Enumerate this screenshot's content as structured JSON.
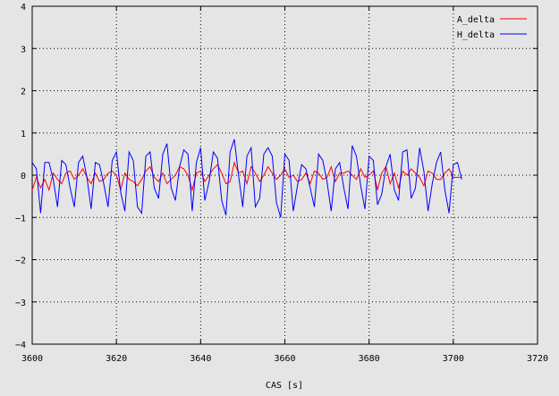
{
  "chart_data": {
    "type": "line",
    "title": "",
    "xlabel": "CAS [s]",
    "ylabel": "",
    "xlim": [
      3600,
      3720
    ],
    "ylim": [
      -4,
      4
    ],
    "grid": true,
    "legend_position": "top-right",
    "x_ticks": [
      "3600",
      "3620",
      "3640",
      "3660",
      "3680",
      "3700",
      "3720"
    ],
    "y_ticks": [
      "4",
      "3",
      "2",
      "1",
      "0",
      "−1",
      "−2",
      "−3",
      "−4"
    ],
    "series": [
      {
        "name": "A_delta",
        "color": "#ff0000",
        "x": [
          3600,
          3601,
          3602,
          3603,
          3604,
          3605,
          3606,
          3607,
          3608,
          3609,
          3610,
          3611,
          3612,
          3613,
          3614,
          3615,
          3616,
          3617,
          3618,
          3619,
          3620,
          3621,
          3622,
          3623,
          3624,
          3625,
          3626,
          3627,
          3628,
          3629,
          3630,
          3631,
          3632,
          3633,
          3634,
          3635,
          3636,
          3637,
          3638,
          3639,
          3640,
          3641,
          3642,
          3643,
          3644,
          3645,
          3646,
          3647,
          3648,
          3649,
          3650,
          3651,
          3652,
          3653,
          3654,
          3655,
          3656,
          3657,
          3658,
          3659,
          3660,
          3661,
          3662,
          3663,
          3664,
          3665,
          3666,
          3667,
          3668,
          3669,
          3670,
          3671,
          3672,
          3673,
          3674,
          3675,
          3676,
          3677,
          3678,
          3679,
          3680,
          3681,
          3682,
          3683,
          3684,
          3685,
          3686,
          3687,
          3688,
          3689,
          3690,
          3691,
          3692,
          3693,
          3694,
          3695,
          3696,
          3697,
          3698,
          3699,
          3700,
          3701,
          3702
        ],
        "values": [
          -0.35,
          -0.05,
          -0.3,
          -0.1,
          -0.35,
          0.05,
          -0.1,
          -0.2,
          0.05,
          0.1,
          -0.1,
          0.0,
          0.15,
          -0.05,
          -0.2,
          0.05,
          -0.15,
          -0.1,
          0.05,
          0.1,
          0.0,
          -0.35,
          0.05,
          -0.1,
          -0.15,
          -0.25,
          -0.1,
          0.1,
          0.2,
          -0.05,
          -0.15,
          0.05,
          -0.2,
          -0.1,
          0.0,
          0.2,
          0.15,
          0.0,
          -0.35,
          0.05,
          0.1,
          -0.15,
          0.0,
          0.15,
          0.25,
          0.05,
          -0.2,
          -0.15,
          0.3,
          0.05,
          0.1,
          -0.2,
          0.2,
          0.05,
          -0.15,
          0.0,
          0.2,
          0.05,
          -0.1,
          0.0,
          0.15,
          -0.05,
          0.0,
          -0.15,
          -0.1,
          0.05,
          -0.2,
          0.1,
          0.05,
          -0.1,
          -0.05,
          0.2,
          -0.15,
          0.05,
          0.05,
          0.1,
          0.0,
          -0.1,
          0.15,
          -0.05,
          0.0,
          0.1,
          -0.35,
          0.05,
          0.2,
          -0.2,
          0.05,
          -0.3,
          0.1,
          0.0,
          0.15,
          0.05,
          -0.05,
          -0.25,
          0.1,
          0.05,
          -0.1,
          -0.1,
          0.05,
          0.15,
          -0.05,
          -0.05,
          -0.05
        ]
      },
      {
        "name": "H_delta",
        "color": "#0000ff",
        "x": [
          3600,
          3601,
          3602,
          3603,
          3604,
          3605,
          3606,
          3607,
          3608,
          3609,
          3610,
          3611,
          3612,
          3613,
          3614,
          3615,
          3616,
          3617,
          3618,
          3619,
          3620,
          3621,
          3622,
          3623,
          3624,
          3625,
          3626,
          3627,
          3628,
          3629,
          3630,
          3631,
          3632,
          3633,
          3634,
          3635,
          3636,
          3637,
          3638,
          3639,
          3640,
          3641,
          3642,
          3643,
          3644,
          3645,
          3646,
          3647,
          3648,
          3649,
          3650,
          3651,
          3652,
          3653,
          3654,
          3655,
          3656,
          3657,
          3658,
          3659,
          3660,
          3661,
          3662,
          3663,
          3664,
          3665,
          3666,
          3667,
          3668,
          3669,
          3670,
          3671,
          3672,
          3673,
          3674,
          3675,
          3676,
          3677,
          3678,
          3679,
          3680,
          3681,
          3682,
          3683,
          3684,
          3685,
          3686,
          3687,
          3688,
          3689,
          3690,
          3691,
          3692,
          3693,
          3694,
          3695,
          3696,
          3697,
          3698,
          3699,
          3700,
          3701,
          3702
        ],
        "values": [
          0.3,
          0.15,
          -0.9,
          0.3,
          0.3,
          -0.1,
          -0.75,
          0.35,
          0.25,
          -0.3,
          -0.75,
          0.3,
          0.45,
          -0.05,
          -0.8,
          0.3,
          0.25,
          -0.2,
          -0.75,
          0.35,
          0.55,
          -0.4,
          -0.85,
          0.55,
          0.35,
          -0.75,
          -0.9,
          0.45,
          0.55,
          -0.3,
          -0.55,
          0.5,
          0.75,
          -0.3,
          -0.6,
          0.2,
          0.6,
          0.5,
          -0.85,
          0.3,
          0.65,
          -0.6,
          -0.15,
          0.55,
          0.4,
          -0.6,
          -0.95,
          0.55,
          0.85,
          0.0,
          -0.75,
          0.45,
          0.65,
          -0.75,
          -0.55,
          0.5,
          0.65,
          0.45,
          -0.65,
          -1.0,
          0.5,
          0.35,
          -0.85,
          -0.25,
          0.25,
          0.15,
          -0.3,
          -0.75,
          0.5,
          0.35,
          -0.15,
          -0.85,
          0.15,
          0.3,
          -0.3,
          -0.8,
          0.7,
          0.45,
          -0.25,
          -0.8,
          0.45,
          0.35,
          -0.7,
          -0.45,
          0.2,
          0.5,
          -0.35,
          -0.6,
          0.55,
          0.6,
          -0.55,
          -0.3,
          0.65,
          0.1,
          -0.85,
          -0.2,
          0.3,
          0.55,
          -0.35,
          -0.9,
          0.25,
          0.3,
          -0.1
        ]
      }
    ]
  }
}
